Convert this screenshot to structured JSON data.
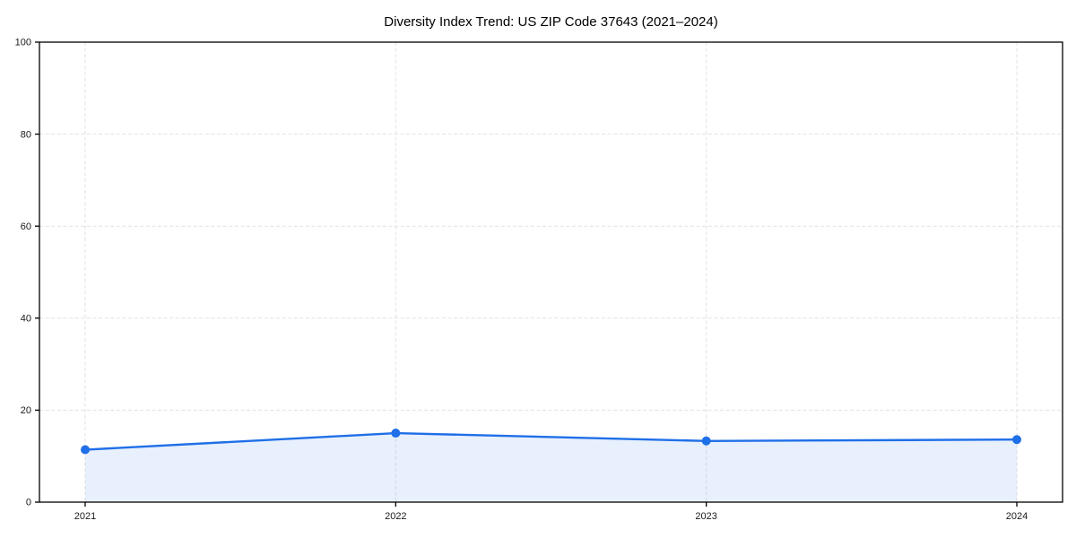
{
  "chart_data": {
    "type": "line",
    "title": "Diversity Index Trend: US ZIP Code 37643 (2021–2024)",
    "x": [
      2021,
      2022,
      2023,
      2024
    ],
    "xticks": [
      "2021",
      "2022",
      "2023",
      "2024"
    ],
    "series": [
      {
        "name": "Diversity Index",
        "values": [
          11.4,
          15.0,
          13.3,
          13.6
        ]
      }
    ],
    "xlabel": "",
    "ylabel": "",
    "ylim": [
      0,
      100
    ],
    "yticks": [
      0,
      20,
      40,
      60,
      80,
      100
    ],
    "grid": true,
    "grid_style": "dashed",
    "legend": "none",
    "marker": "circle",
    "area_fill": true,
    "colors": {
      "line": "#1f6fe8",
      "fill": "#1f6fe8",
      "fill_opacity": 0.1,
      "grid": "#e1e1e1",
      "spine": "#000000",
      "text": "#1a1a1a",
      "background": "#ffffff"
    }
  }
}
